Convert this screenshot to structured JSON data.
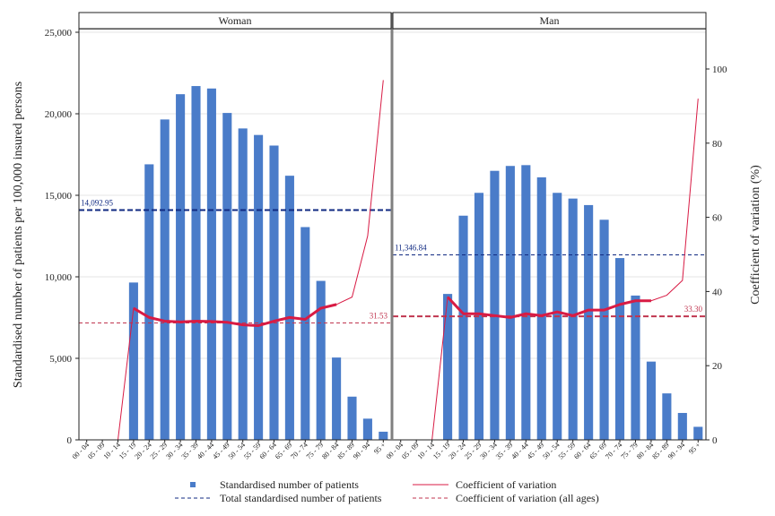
{
  "chart_data": {
    "type": "bar",
    "ylabel_left": "Standardised number of patients per 100,000 insured persons",
    "ylabel_right": "Coefficient of variation (%)",
    "ylim_left": [
      0,
      25000
    ],
    "ylim_right": [
      0,
      100
    ],
    "yticks_left": [
      "0",
      "5,000",
      "10,000",
      "15,000",
      "20,000",
      "25,000"
    ],
    "yticks_left_values": [
      0,
      5000,
      10000,
      15000,
      20000,
      25000
    ],
    "yticks_right": [
      "0",
      "20",
      "40",
      "60",
      "80",
      "100"
    ],
    "yticks_right_values": [
      0,
      20,
      40,
      60,
      80,
      100
    ],
    "categories": [
      "00 - 04",
      "05 - 09",
      "10 - 14",
      "15 - 19",
      "20 - 24",
      "25 - 29",
      "30 - 34",
      "35 - 39",
      "40 - 44",
      "45 - 49",
      "50 - 54",
      "55 - 59",
      "60 - 64",
      "65 - 69",
      "70 - 74",
      "75 - 79",
      "80 - 84",
      "85 - 89",
      "90 - 94",
      "95 +"
    ],
    "panels": [
      {
        "title": "Woman",
        "patients": [
          0,
          0,
          0,
          9650,
          16900,
          19650,
          21200,
          21700,
          21550,
          20050,
          19100,
          18700,
          18050,
          16200,
          13050,
          9750,
          5050,
          2650,
          1300,
          500
        ],
        "cv": [
          0,
          0,
          0,
          35.5,
          33.0,
          32.0,
          31.8,
          32.0,
          31.9,
          31.7,
          31.0,
          30.8,
          32.0,
          33.0,
          32.5,
          35.5,
          36.5,
          38.5,
          55.0,
          97.0
        ],
        "cv_thick_range": [
          3,
          16
        ],
        "total_patients": 14092.95,
        "total_patients_label": "14,092.95",
        "cv_all_ages": 31.53,
        "cv_all_ages_label": "31.53"
      },
      {
        "title": "Man",
        "patients": [
          0,
          0,
          0,
          8950,
          13750,
          15150,
          16500,
          16800,
          16850,
          16100,
          15150,
          14800,
          14400,
          13500,
          11150,
          8850,
          4800,
          2850,
          1650,
          800
        ],
        "cv": [
          0,
          0,
          0,
          38.5,
          34.0,
          34.0,
          33.5,
          33.0,
          34.0,
          33.5,
          34.5,
          33.5,
          35.0,
          35.0,
          36.5,
          37.5,
          37.5,
          39.0,
          43.0,
          92.0
        ],
        "cv_thick_range": [
          3,
          16
        ],
        "total_patients": 11346.84,
        "total_patients_label": "11,346.84",
        "cv_all_ages": 33.3,
        "cv_all_ages_label": "33.30"
      }
    ],
    "legend": {
      "placement": "bottom",
      "items": [
        {
          "key": "bar",
          "label": "Standardised number of patients"
        },
        {
          "key": "cv",
          "label": "Coefficient of variation"
        },
        {
          "key": "total",
          "label": "Total standardised number of patients"
        },
        {
          "key": "cvall",
          "label": "Coefficient of variation (all ages)"
        }
      ]
    },
    "colors": {
      "bar": "#4a7cc9",
      "cv": "#d81b44",
      "total": "#102a82",
      "cvall": "#c0354f",
      "grid": "#e6e6e6",
      "divider": "#808080"
    }
  }
}
